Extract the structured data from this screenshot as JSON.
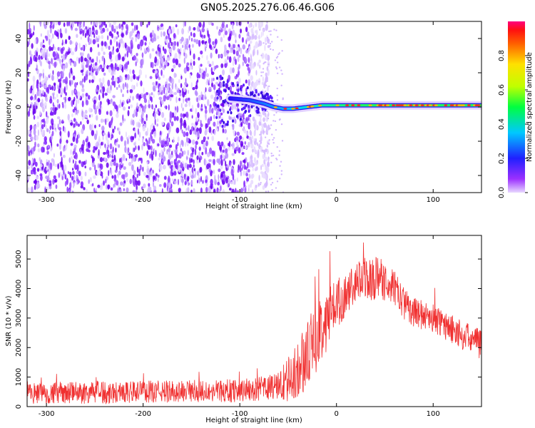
{
  "title": "GN05.2025.276.06.46.G06",
  "colors": {
    "snr_line": "#f03030",
    "scatter_low": "#8a2be2",
    "background": "#ffffff"
  },
  "chart_data": [
    {
      "type": "heatmap",
      "xlabel": "Height of straight line (km)",
      "ylabel": "Frequency (Hz)",
      "xlim": [
        -320,
        150
      ],
      "ylim": [
        -50,
        50
      ],
      "xticks": [
        -300,
        -200,
        -100,
        0,
        100
      ],
      "yticks": [
        -40,
        -20,
        0,
        20,
        40
      ],
      "noise_region": {
        "x_from": -320,
        "x_to": -80,
        "freq_range": [
          -50,
          50
        ]
      },
      "signal_track": {
        "x": [
          -110,
          -90,
          -75,
          -65,
          -55,
          -45,
          -30,
          -15,
          0,
          20,
          50,
          80,
          100,
          150
        ],
        "freq": [
          5,
          4,
          2,
          0,
          -1,
          -1,
          0,
          1,
          1,
          1,
          1,
          1,
          1,
          1
        ]
      },
      "colorbar": {
        "label": "Normalized spectral amplitude",
        "range": [
          0,
          1
        ],
        "ticks": [
          "0.0",
          "0.2",
          "0.4",
          "0.6",
          "0.8"
        ]
      }
    },
    {
      "type": "line",
      "xlabel": "Height of straight line (km)",
      "ylabel": "SNR (10 * v/v)",
      "xlim": [
        -320,
        150
      ],
      "ylim": [
        0,
        5800
      ],
      "xticks": [
        -300,
        -200,
        -100,
        0,
        100
      ],
      "yticks": [
        0,
        1000,
        2000,
        3000,
        4000,
        5000
      ],
      "envelope": {
        "x": [
          -320,
          -250,
          -200,
          -150,
          -100,
          -80,
          -60,
          -50,
          -40,
          -30,
          -20,
          -10,
          0,
          10,
          20,
          30,
          40,
          50,
          60,
          70,
          80,
          100,
          120,
          150
        ],
        "mean": [
          450,
          480,
          500,
          520,
          550,
          600,
          700,
          900,
          1200,
          1800,
          2400,
          3000,
          3500,
          3800,
          4100,
          4400,
          4300,
          4300,
          4000,
          3500,
          3200,
          3000,
          2600,
          2100
        ],
        "amp": [
          350,
          400,
          380,
          380,
          400,
          400,
          500,
          800,
          1000,
          1100,
          1200,
          1100,
          900,
          700,
          700,
          800,
          800,
          700,
          600,
          550,
          500,
          500,
          500,
          500
        ]
      }
    }
  ]
}
